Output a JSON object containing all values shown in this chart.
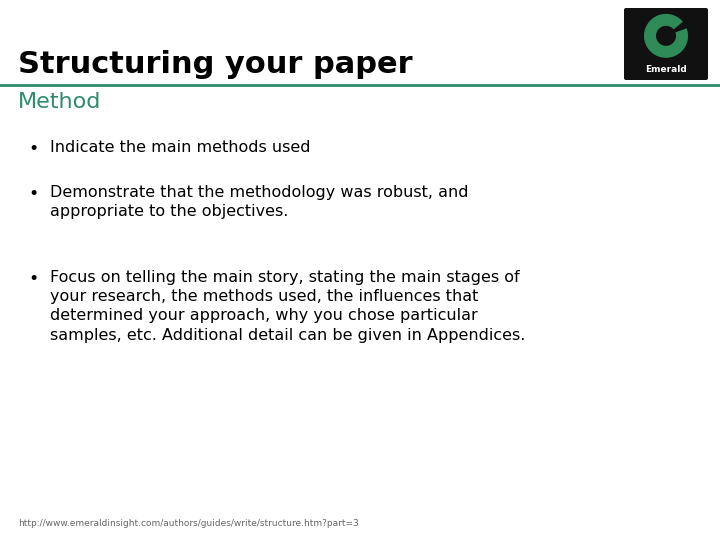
{
  "title": "Structuring your paper",
  "subtitle": "Method",
  "subtitle_color": "#2e8b6e",
  "title_color": "#000000",
  "title_fontsize": 22,
  "subtitle_fontsize": 16,
  "background_color": "#ffffff",
  "separator_color": "#2e8b6e",
  "bullet_points": [
    "Indicate the main methods used",
    "Demonstrate that the methodology was robust, and\nappropriate to the objectives.",
    "Focus on telling the main story, stating the main stages of\nyour research, the methods used, the influences that\ndetermined your approach, why you chose particular\nsamples, etc. Additional detail can be given in Appendices."
  ],
  "bullet_fontsize": 11.5,
  "footer_text": "http://www.emeraldinsight.com/authors/guides/write/structure.htm?part=3",
  "footer_fontsize": 6.5,
  "logo_box_color": "#111111",
  "logo_circle_color": "#2e8b57",
  "logo_text": "Emerald"
}
